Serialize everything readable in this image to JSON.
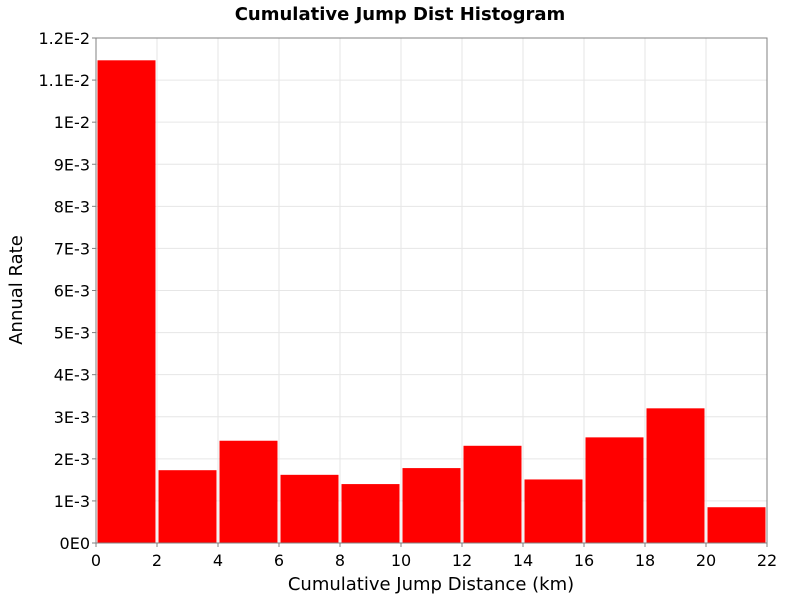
{
  "chart_data": {
    "type": "bar",
    "title": "Cumulative Jump Dist Histogram",
    "xlabel": "Cumulative Jump Distance (km)",
    "ylabel": "Annual Rate",
    "xlim": [
      0,
      22
    ],
    "ylim": [
      0,
      0.012
    ],
    "grid": true,
    "bar_color": "#ff0000",
    "bins": [
      {
        "x0": 0,
        "x1": 2,
        "value": 0.01147
      },
      {
        "x0": 2,
        "x1": 4,
        "value": 0.00173
      },
      {
        "x0": 4,
        "x1": 6,
        "value": 0.00243
      },
      {
        "x0": 6,
        "x1": 8,
        "value": 0.00162
      },
      {
        "x0": 8,
        "x1": 10,
        "value": 0.0014
      },
      {
        "x0": 10,
        "x1": 12,
        "value": 0.00178
      },
      {
        "x0": 12,
        "x1": 14,
        "value": 0.00231
      },
      {
        "x0": 14,
        "x1": 16,
        "value": 0.00151
      },
      {
        "x0": 16,
        "x1": 18,
        "value": 0.00251
      },
      {
        "x0": 18,
        "x1": 20,
        "value": 0.0032
      },
      {
        "x0": 20,
        "x1": 22,
        "value": 0.00085
      }
    ],
    "x_ticks": [
      {
        "value": 0,
        "label": "0"
      },
      {
        "value": 2,
        "label": "2"
      },
      {
        "value": 4,
        "label": "4"
      },
      {
        "value": 6,
        "label": "6"
      },
      {
        "value": 8,
        "label": "8"
      },
      {
        "value": 10,
        "label": "10"
      },
      {
        "value": 12,
        "label": "12"
      },
      {
        "value": 14,
        "label": "14"
      },
      {
        "value": 16,
        "label": "16"
      },
      {
        "value": 18,
        "label": "18"
      },
      {
        "value": 20,
        "label": "20"
      },
      {
        "value": 22,
        "label": "22"
      }
    ],
    "y_ticks": [
      {
        "value": 0,
        "label": "0E0"
      },
      {
        "value": 0.001,
        "label": "1E-3"
      },
      {
        "value": 0.002,
        "label": "2E-3"
      },
      {
        "value": 0.003,
        "label": "3E-3"
      },
      {
        "value": 0.004,
        "label": "4E-3"
      },
      {
        "value": 0.005,
        "label": "5E-3"
      },
      {
        "value": 0.006,
        "label": "6E-3"
      },
      {
        "value": 0.007,
        "label": "7E-3"
      },
      {
        "value": 0.008,
        "label": "8E-3"
      },
      {
        "value": 0.009,
        "label": "9E-3"
      },
      {
        "value": 0.01,
        "label": "1E-2"
      },
      {
        "value": 0.011,
        "label": "1.1E-2"
      },
      {
        "value": 0.012,
        "label": "1.2E-2"
      }
    ]
  }
}
